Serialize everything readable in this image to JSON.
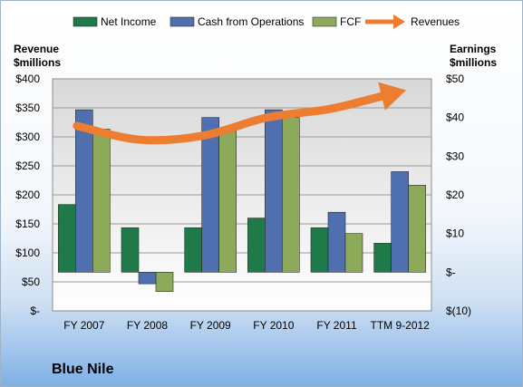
{
  "chart_data": {
    "type": "bar",
    "company": "Blue Nile",
    "categories": [
      "FY 2007",
      "FY 2008",
      "FY 2009",
      "FY 2010",
      "FY 2011",
      "TTM 9-2012"
    ],
    "series": [
      {
        "name": "Net Income",
        "axis": "right",
        "color": "#1f7a4a",
        "values": [
          17.5,
          11.5,
          11.5,
          14,
          11.5,
          7.5
        ]
      },
      {
        "name": "Cash from Operations",
        "axis": "right",
        "color": "#4f6fae",
        "values": [
          42,
          -3,
          40,
          42,
          15.5,
          26
        ]
      },
      {
        "name": "FCF",
        "axis": "right",
        "color": "#8caa5a",
        "values": [
          37,
          -5,
          36.5,
          40,
          10,
          22.5
        ]
      },
      {
        "name": "Revenues",
        "axis": "left",
        "type": "line",
        "color": "#ec7d31",
        "values": [
          319,
          295,
          302,
          333,
          348,
          370
        ]
      }
    ],
    "left_axis": {
      "title": "Revenue\n$millions",
      "min": 0,
      "max": 400,
      "ticks": [
        "$-",
        "$50",
        "$100",
        "$150",
        "$200",
        "$250",
        "$300",
        "$350",
        "$400"
      ]
    },
    "right_axis": {
      "title": "Earnings\n$millions",
      "min": -10,
      "max": 50,
      "ticks": [
        "$(10)",
        "$-",
        "$10",
        "$20",
        "$30",
        "$40",
        "$50"
      ]
    },
    "grid": true,
    "legend_position": "top"
  }
}
